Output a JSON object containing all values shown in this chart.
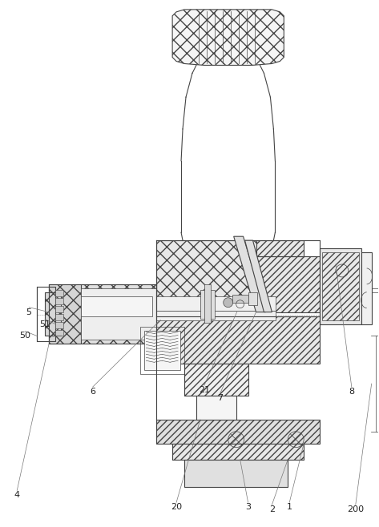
{
  "bg_color": "#ffffff",
  "lc": "#777777",
  "dc": "#444444",
  "figsize": [
    4.73,
    6.58
  ],
  "dpi": 100,
  "label_fs": 8
}
